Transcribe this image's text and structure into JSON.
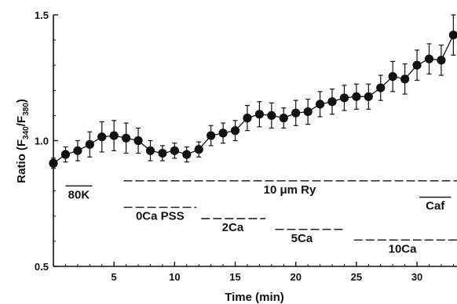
{
  "chart_data": {
    "type": "scatter",
    "title": "",
    "xlabel": "Time (min)",
    "ylabel": "Ratio (F340/F380)",
    "ylabel_parts": {
      "prefix": "Ratio (F",
      "sub1": "340",
      "sep": "/F",
      "sub2": "380",
      "suffix": ")"
    },
    "xlim": [
      0,
      33.3
    ],
    "ylim": [
      0.5,
      1.5
    ],
    "x_ticks": [
      5,
      10,
      15,
      20,
      25,
      30
    ],
    "x_tick_labels": [
      "5",
      "10",
      "15",
      "20",
      "25",
      "30"
    ],
    "y_ticks": [
      0.5,
      1.0,
      1.5
    ],
    "y_tick_labels": [
      "0.5",
      "1.0",
      "1.5"
    ],
    "grid": false,
    "series": [
      {
        "x": [
          0,
          1,
          2,
          3,
          4,
          5,
          6,
          7,
          8,
          9,
          10,
          11,
          12,
          13,
          14,
          15,
          16,
          17,
          18,
          19,
          20,
          21,
          22,
          23,
          24,
          25,
          26,
          27,
          28,
          29,
          30,
          31,
          32,
          33
        ],
        "y": [
          0.91,
          0.945,
          0.96,
          0.985,
          1.015,
          1.02,
          1.01,
          1.0,
          0.96,
          0.95,
          0.96,
          0.945,
          0.965,
          1.02,
          1.03,
          1.04,
          1.09,
          1.105,
          1.1,
          1.09,
          1.11,
          1.115,
          1.145,
          1.155,
          1.17,
          1.175,
          1.175,
          1.21,
          1.255,
          1.245,
          1.3,
          1.325,
          1.32,
          1.42
        ],
        "err": [
          0.02,
          0.03,
          0.04,
          0.05,
          0.06,
          0.06,
          0.06,
          0.05,
          0.04,
          0.03,
          0.03,
          0.03,
          0.03,
          0.04,
          0.04,
          0.04,
          0.05,
          0.05,
          0.05,
          0.04,
          0.05,
          0.05,
          0.05,
          0.05,
          0.05,
          0.05,
          0.05,
          0.05,
          0.06,
          0.06,
          0.06,
          0.06,
          0.06,
          0.08
        ]
      }
    ],
    "annotations": [
      {
        "text": "80K",
        "x1": 1.0,
        "x2": 3.2,
        "y": 0.82,
        "style": "overline"
      },
      {
        "text": "10 μm Ry",
        "x1": 5.8,
        "x2": 33.3,
        "y": 0.84,
        "style": "dashed",
        "label_x": 19.5
      },
      {
        "text": "0Ca PSS",
        "x1": 5.8,
        "x2": 11.8,
        "y": 0.735,
        "style": "dashed",
        "label_x": 8.8
      },
      {
        "text": "2Ca",
        "x1": 12.2,
        "x2": 17.5,
        "y": 0.69,
        "style": "dashed",
        "label_x": 14.8
      },
      {
        "text": "5Ca",
        "x1": 18.3,
        "x2": 24.0,
        "y": 0.647,
        "style": "dashed",
        "label_x": 20.5
      },
      {
        "text": "10Ca",
        "x1": 24.8,
        "x2": 33.3,
        "y": 0.605,
        "style": "dashed",
        "label_x": 28.8
      },
      {
        "text": "Caf",
        "x1": 30.2,
        "x2": 32.8,
        "y": 0.775,
        "style": "overline"
      }
    ]
  }
}
